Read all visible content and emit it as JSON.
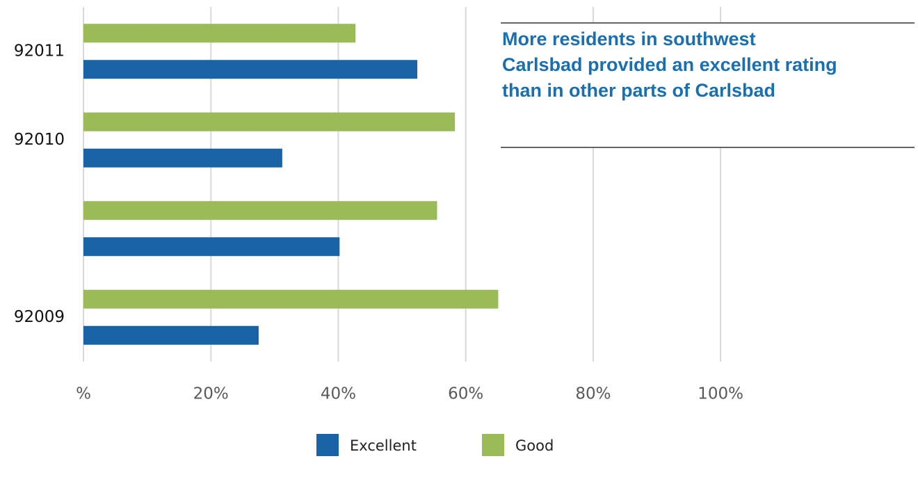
{
  "chart_data": {
    "type": "bar",
    "orientation": "horizontal",
    "categories": [
      "92011",
      "92010",
      null,
      "92009"
    ],
    "series": [
      {
        "name": "Excellent",
        "color": "#1763a6",
        "values": [
          52.4,
          31.2,
          40.2,
          27.5
        ]
      },
      {
        "name": "Good",
        "color": "#9bbb59",
        "values": [
          42.7,
          58.3,
          55.5,
          65.1
        ]
      }
    ],
    "xlim": [
      0,
      130
    ],
    "xticks": [
      {
        "value": 0,
        "label": "%"
      },
      {
        "value": 20,
        "label": "20%"
      },
      {
        "value": 40,
        "label": "40%"
      },
      {
        "value": 60,
        "label": "60%"
      },
      {
        "value": 80,
        "label": "80%"
      },
      {
        "value": 100,
        "label": "100%"
      }
    ],
    "grid": true,
    "legend": "bottom",
    "annotation": [
      "More residents in southwest",
      "Carlsbad provided an excellent rating",
      "than in other parts of Carlsbad"
    ]
  }
}
